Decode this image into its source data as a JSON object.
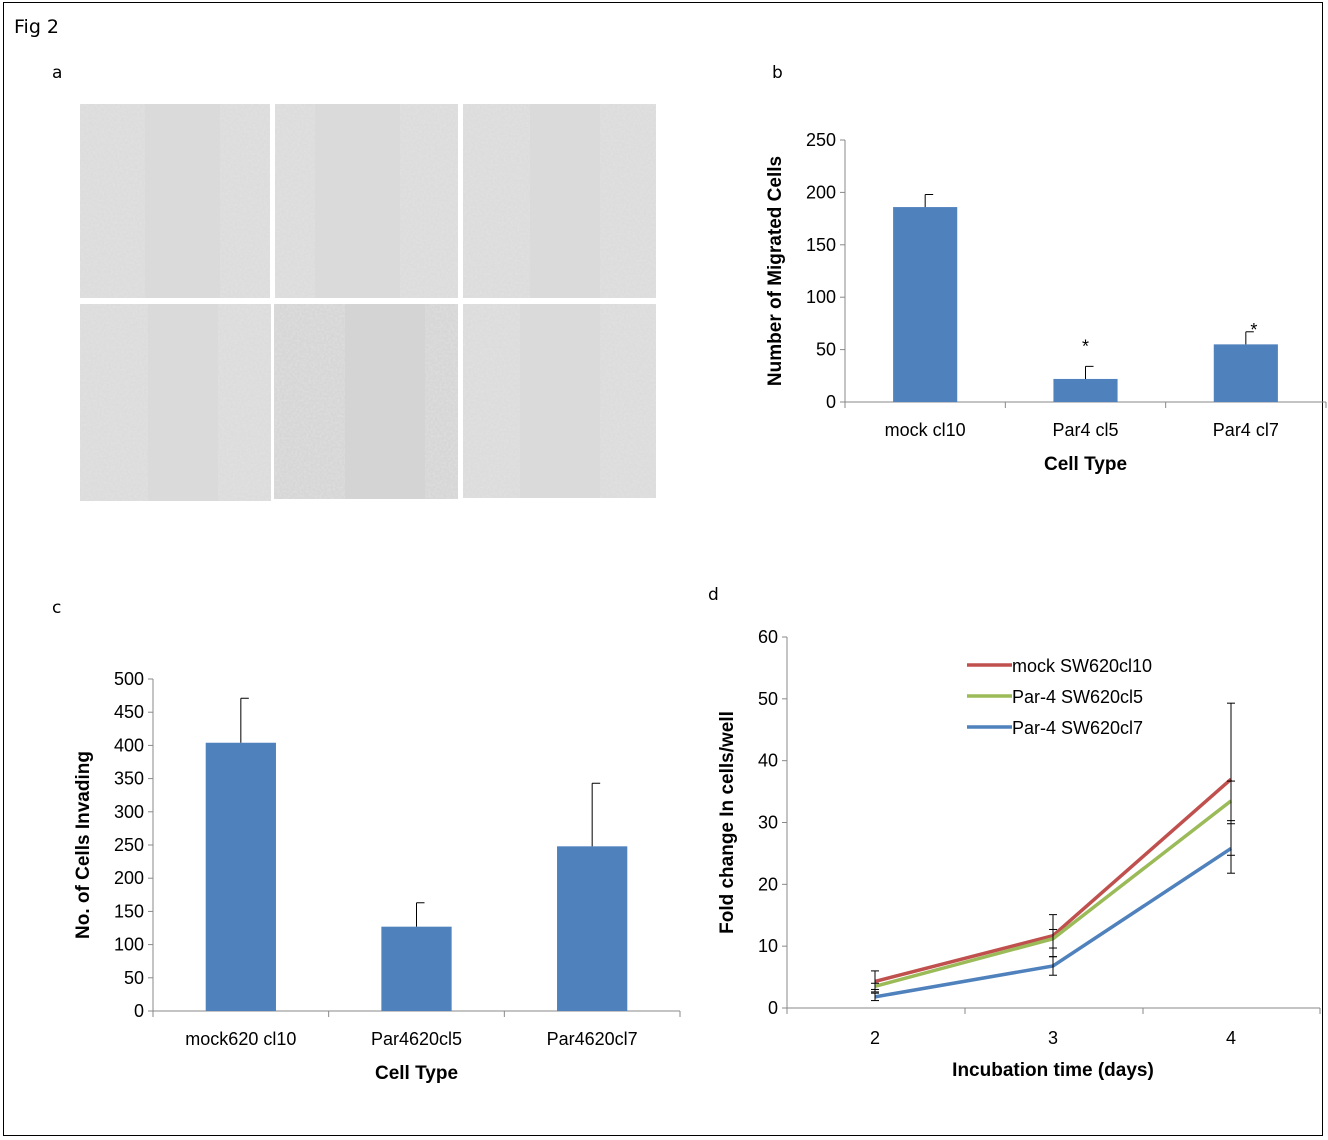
{
  "figure_label": "Fig 2",
  "panels": {
    "a": "a",
    "b": "b",
    "c": "c",
    "d": "d"
  },
  "chart_data": [
    {
      "panel": "b",
      "type": "bar",
      "categories": [
        "mock cl10",
        "Par4 cl5",
        "Par4 cl7"
      ],
      "values": [
        186,
        22,
        55
      ],
      "errors": [
        12,
        12,
        12
      ],
      "annotations": [
        "",
        "*",
        "*"
      ],
      "xlabel": "Cell Type",
      "ylabel": "Number of Migrated Cells",
      "ylim": [
        0,
        250
      ],
      "yticks": [
        0,
        50,
        100,
        150,
        200,
        250
      ],
      "color": "#4f81bd",
      "grid": false
    },
    {
      "panel": "c",
      "type": "bar",
      "categories": [
        "mock620 cl10",
        "Par4620cl5",
        "Par4620cl7"
      ],
      "values": [
        404,
        127,
        248
      ],
      "errors": [
        67,
        36,
        95
      ],
      "xlabel": "Cell Type",
      "ylabel": "No. of Cells Invading",
      "ylim": [
        0,
        500
      ],
      "yticks": [
        0,
        50,
        100,
        150,
        200,
        250,
        300,
        350,
        400,
        450,
        500
      ],
      "color": "#4f81bd",
      "grid": false
    },
    {
      "panel": "d",
      "type": "line",
      "x": [
        2,
        3,
        4
      ],
      "series": [
        {
          "name": "mock SW620cl10",
          "color": "#c0504d",
          "values": [
            4.3,
            11.7,
            37.0
          ],
          "errors": [
            1.7,
            3.4,
            12.3
          ]
        },
        {
          "name": "Par-4 SW620cl5",
          "color": "#9bbb59",
          "values": [
            3.5,
            11.2,
            33.5
          ],
          "errors": [
            0.5,
            1.5,
            3.2
          ]
        },
        {
          "name": "Par-4 SW620cl7",
          "color": "#4f81bd",
          "values": [
            1.8,
            6.8,
            25.8
          ],
          "errors": [
            0.6,
            1.5,
            4.0
          ]
        }
      ],
      "xlabel": "Incubation  time (days)",
      "ylabel": "Fold change In cells/well",
      "ylim": [
        0,
        60
      ],
      "yticks": [
        0,
        10,
        20,
        30,
        40,
        50,
        60
      ],
      "legend": "top-center",
      "grid": false
    }
  ]
}
